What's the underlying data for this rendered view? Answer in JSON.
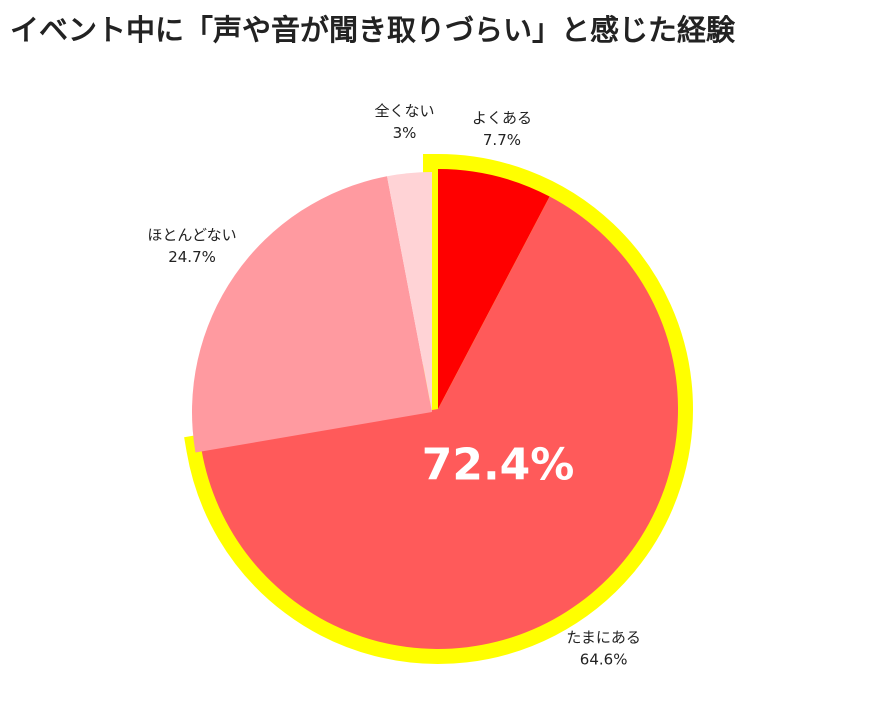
{
  "chart_data": {
    "type": "pie",
    "title": "イベント中に「声や音が聞き取りづらい」と感じた経験",
    "categories": [
      "よくある",
      "たまにある",
      "ほとんどない",
      "全くない"
    ],
    "values": [
      7.7,
      64.6,
      24.7,
      3
    ],
    "value_labels": [
      "7.7%",
      "64.6%",
      "24.7%",
      "3%"
    ],
    "colors": [
      "#ff0000",
      "#ff5a5a",
      "#ff9aa0",
      "#ffd3d6"
    ],
    "highlight": {
      "slices": [
        0,
        1
      ],
      "color": "#ffff00",
      "label": "72.4%"
    }
  }
}
